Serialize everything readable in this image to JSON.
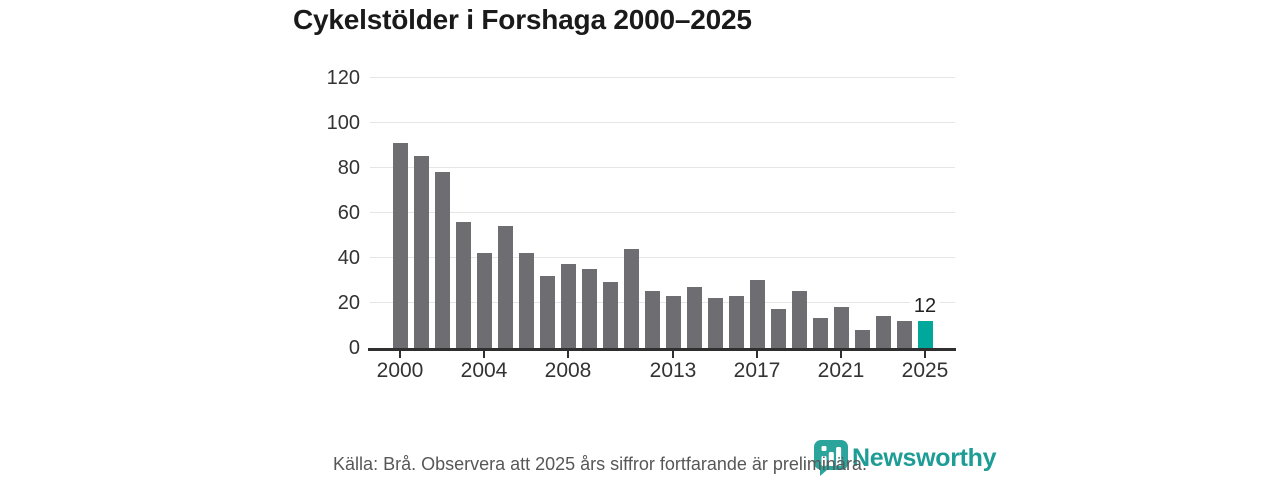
{
  "title": "Cykelstölder i Forshaga 2000–2025",
  "footer": {
    "source_note": "Källa: Brå. Observera att 2025 års siffror fortfarande är preliminära."
  },
  "branding": {
    "name": "Newsworthy",
    "icon": "newsworthy-barchart-bubble-icon",
    "logo_color": "#1d9d95",
    "icon_color": "#2ba59c"
  },
  "colors": {
    "bar": "#6e6d72",
    "highlight": "#00a79b",
    "gridline": "#e6e6e6",
    "axis": "#2f2f2f",
    "title_text": "#1a1a1a",
    "tick_text": "#333333",
    "footer_text": "#575757"
  },
  "chart_data": {
    "type": "bar",
    "title": "Cykelstölder i Forshaga 2000–2025",
    "xlabel": "",
    "ylabel": "",
    "x": [
      2000,
      2001,
      2002,
      2003,
      2004,
      2005,
      2006,
      2007,
      2008,
      2009,
      2010,
      2011,
      2012,
      2013,
      2014,
      2015,
      2016,
      2017,
      2018,
      2019,
      2020,
      2021,
      2022,
      2023,
      2024,
      2025
    ],
    "values": [
      91,
      85,
      78,
      56,
      42,
      54,
      42,
      32,
      37,
      35,
      29,
      44,
      25,
      23,
      27,
      22,
      23,
      30,
      17,
      25,
      13,
      18,
      8,
      14,
      12,
      12
    ],
    "highlight_x": 2025,
    "highlight_value_label": "12",
    "ylim": [
      0,
      120
    ],
    "y_ticks": [
      0,
      20,
      40,
      60,
      80,
      100,
      120
    ],
    "x_ticks": [
      2000,
      2004,
      2008,
      2013,
      2017,
      2021,
      2025
    ],
    "grid": true,
    "legend": false
  }
}
